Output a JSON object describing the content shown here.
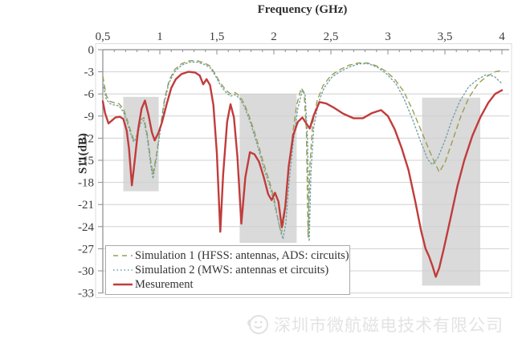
{
  "watermark": {
    "text": "深圳市微航磁电技术有限公司",
    "logo": "smiley-swirl-logo",
    "color": "#e3e3e3"
  },
  "colors": {
    "simulation1": "#9a9e50",
    "simulation2": "#74a2a6",
    "measurement": "#c13c3c",
    "grid": "#d0d0d0",
    "axis": "#8c8c8c",
    "band": "#dadada",
    "text": "#3c3c3c",
    "frame": "#dcdcdc"
  },
  "chart_data": {
    "type": "line",
    "title": "Frequency (GHz)",
    "xlabel": "Frequency (GHz)",
    "ylabel": "S11(dB)",
    "xlim": [
      0.5,
      4.0
    ],
    "ylim": [
      -33,
      0
    ],
    "x_tick_values": [
      0.5,
      1,
      1.5,
      2,
      2.5,
      3,
      3.5,
      4
    ],
    "x_tick_labels": [
      "0,5",
      "1",
      "1,5",
      "2",
      "2,5",
      "3",
      "3,5",
      "4"
    ],
    "x_minor_step": 0.1,
    "y_tick_values": [
      0,
      -3,
      -6,
      -9,
      -12,
      -15,
      -18,
      -21,
      -24,
      -27,
      -30,
      -33
    ],
    "y_tick_labels": [
      "0",
      "-3",
      "-6",
      "-9",
      "-12",
      "-15",
      "-18",
      "-21",
      "-24",
      "-27",
      "-30",
      "-33"
    ],
    "grid": "horizontal",
    "legend_position": "bottom-left",
    "highlight_bands": [
      {
        "x_range": [
          0.68,
          0.99
        ],
        "db_range": [
          -6.4,
          -19.2
        ]
      },
      {
        "x_range": [
          1.7,
          2.2
        ],
        "db_range": [
          -6.0,
          -26.2
        ]
      },
      {
        "x_range": [
          3.3,
          3.81
        ],
        "db_range": [
          -6.5,
          -32.0
        ]
      }
    ],
    "series": [
      {
        "name": "Simulation 1 (HFSS: antennas, ADS: circuits)",
        "style": "dashed",
        "color": "#9a9e50",
        "width": 1.4,
        "points": [
          [
            0.5,
            -3.6
          ],
          [
            0.53,
            -6.2
          ],
          [
            0.56,
            -7.0
          ],
          [
            0.6,
            -7.2
          ],
          [
            0.64,
            -7.3
          ],
          [
            0.68,
            -8.0
          ],
          [
            0.71,
            -9.3
          ],
          [
            0.74,
            -10.8
          ],
          [
            0.77,
            -12.2
          ],
          [
            0.8,
            -11.6
          ],
          [
            0.83,
            -9.6
          ],
          [
            0.86,
            -9.2
          ],
          [
            0.89,
            -11.5
          ],
          [
            0.92,
            -15.0
          ],
          [
            0.94,
            -16.9
          ],
          [
            0.97,
            -14.3
          ],
          [
            1.0,
            -11.0
          ],
          [
            1.04,
            -6.8
          ],
          [
            1.08,
            -4.2
          ],
          [
            1.13,
            -2.7
          ],
          [
            1.19,
            -1.9
          ],
          [
            1.26,
            -1.5
          ],
          [
            1.33,
            -1.5
          ],
          [
            1.39,
            -1.8
          ],
          [
            1.44,
            -2.2
          ],
          [
            1.49,
            -3.4
          ],
          [
            1.53,
            -4.5
          ],
          [
            1.58,
            -5.5
          ],
          [
            1.62,
            -6.0
          ],
          [
            1.66,
            -5.8
          ],
          [
            1.7,
            -6.3
          ],
          [
            1.74,
            -7.3
          ],
          [
            1.79,
            -9.3
          ],
          [
            1.83,
            -11.2
          ],
          [
            1.87,
            -13.2
          ],
          [
            1.91,
            -15.4
          ],
          [
            1.96,
            -17.8
          ],
          [
            2.0,
            -20.0
          ],
          [
            2.04,
            -23.3
          ],
          [
            2.065,
            -25.0
          ],
          [
            2.09,
            -23.0
          ],
          [
            2.12,
            -18.0
          ],
          [
            2.16,
            -12.0
          ],
          [
            2.2,
            -7.5
          ],
          [
            2.24,
            -5.2
          ],
          [
            2.265,
            -5.8
          ],
          [
            2.285,
            -11.0
          ],
          [
            2.3,
            -25.5
          ],
          [
            2.315,
            -16.0
          ],
          [
            2.34,
            -10.0
          ],
          [
            2.38,
            -6.9
          ],
          [
            2.43,
            -4.9
          ],
          [
            2.5,
            -3.5
          ],
          [
            2.58,
            -2.7
          ],
          [
            2.66,
            -2.1
          ],
          [
            2.74,
            -1.8
          ],
          [
            2.82,
            -1.8
          ],
          [
            2.9,
            -2.2
          ],
          [
            2.98,
            -2.9
          ],
          [
            3.06,
            -4.0
          ],
          [
            3.14,
            -5.7
          ],
          [
            3.22,
            -8.3
          ],
          [
            3.3,
            -11.3
          ],
          [
            3.38,
            -14.3
          ],
          [
            3.45,
            -16.6
          ],
          [
            3.5,
            -15.3
          ],
          [
            3.57,
            -12.2
          ],
          [
            3.64,
            -9.0
          ],
          [
            3.71,
            -6.5
          ],
          [
            3.79,
            -4.6
          ],
          [
            3.87,
            -3.6
          ],
          [
            3.94,
            -3.0
          ],
          [
            4.0,
            -2.8
          ]
        ]
      },
      {
        "name": "Simulation 2 (MWS: antennas et circuits)",
        "style": "dotted",
        "color": "#74a2a6",
        "width": 1.4,
        "points": [
          [
            0.5,
            -4.6
          ],
          [
            0.53,
            -6.7
          ],
          [
            0.56,
            -7.3
          ],
          [
            0.6,
            -7.5
          ],
          [
            0.64,
            -7.6
          ],
          [
            0.68,
            -8.4
          ],
          [
            0.71,
            -9.7
          ],
          [
            0.74,
            -11.2
          ],
          [
            0.77,
            -12.5
          ],
          [
            0.8,
            -11.9
          ],
          [
            0.83,
            -10.0
          ],
          [
            0.86,
            -9.6
          ],
          [
            0.89,
            -12.0
          ],
          [
            0.92,
            -15.6
          ],
          [
            0.94,
            -17.5
          ],
          [
            0.97,
            -14.8
          ],
          [
            1.0,
            -11.4
          ],
          [
            1.04,
            -7.2
          ],
          [
            1.08,
            -4.5
          ],
          [
            1.13,
            -3.0
          ],
          [
            1.19,
            -2.1
          ],
          [
            1.26,
            -1.7
          ],
          [
            1.33,
            -1.7
          ],
          [
            1.39,
            -2.0
          ],
          [
            1.44,
            -2.4
          ],
          [
            1.49,
            -3.6
          ],
          [
            1.53,
            -4.8
          ],
          [
            1.58,
            -5.8
          ],
          [
            1.62,
            -6.3
          ],
          [
            1.66,
            -6.1
          ],
          [
            1.7,
            -6.6
          ],
          [
            1.74,
            -7.7
          ],
          [
            1.79,
            -9.7
          ],
          [
            1.83,
            -11.7
          ],
          [
            1.87,
            -13.7
          ],
          [
            1.91,
            -16.0
          ],
          [
            1.96,
            -18.3
          ],
          [
            2.0,
            -20.6
          ],
          [
            2.05,
            -24.0
          ],
          [
            2.08,
            -25.7
          ],
          [
            2.105,
            -23.5
          ],
          [
            2.13,
            -18.5
          ],
          [
            2.17,
            -12.5
          ],
          [
            2.21,
            -8.0
          ],
          [
            2.25,
            -5.5
          ],
          [
            2.275,
            -6.2
          ],
          [
            2.295,
            -12.0
          ],
          [
            2.31,
            -26.0
          ],
          [
            2.325,
            -16.5
          ],
          [
            2.35,
            -10.5
          ],
          [
            2.39,
            -7.2
          ],
          [
            2.44,
            -5.2
          ],
          [
            2.51,
            -3.7
          ],
          [
            2.59,
            -2.9
          ],
          [
            2.67,
            -2.3
          ],
          [
            2.75,
            -1.9
          ],
          [
            2.83,
            -1.9
          ],
          [
            2.91,
            -2.4
          ],
          [
            2.99,
            -3.3
          ],
          [
            3.07,
            -4.6
          ],
          [
            3.14,
            -6.6
          ],
          [
            3.22,
            -9.6
          ],
          [
            3.29,
            -12.6
          ],
          [
            3.35,
            -14.9
          ],
          [
            3.39,
            -15.6
          ],
          [
            3.44,
            -14.6
          ],
          [
            3.5,
            -12.3
          ],
          [
            3.56,
            -9.6
          ],
          [
            3.63,
            -7.0
          ],
          [
            3.71,
            -5.0
          ],
          [
            3.79,
            -4.0
          ],
          [
            3.86,
            -3.4
          ],
          [
            3.93,
            -3.6
          ],
          [
            4.0,
            -4.6
          ]
        ]
      },
      {
        "name": "Mesurement",
        "style": "solid",
        "color": "#c13c3c",
        "width": 2.4,
        "points": [
          [
            0.5,
            -7.0
          ],
          [
            0.52,
            -8.6
          ],
          [
            0.55,
            -10.0
          ],
          [
            0.58,
            -9.6
          ],
          [
            0.61,
            -9.2
          ],
          [
            0.65,
            -9.1
          ],
          [
            0.68,
            -9.4
          ],
          [
            0.71,
            -11.0
          ],
          [
            0.73,
            -13.5
          ],
          [
            0.755,
            -18.4
          ],
          [
            0.78,
            -15.0
          ],
          [
            0.81,
            -10.8
          ],
          [
            0.84,
            -8.0
          ],
          [
            0.87,
            -6.9
          ],
          [
            0.9,
            -8.8
          ],
          [
            0.93,
            -11.2
          ],
          [
            0.955,
            -12.3
          ],
          [
            0.99,
            -11.2
          ],
          [
            1.02,
            -9.8
          ],
          [
            1.06,
            -7.4
          ],
          [
            1.1,
            -5.2
          ],
          [
            1.14,
            -4.0
          ],
          [
            1.19,
            -3.3
          ],
          [
            1.25,
            -3.0
          ],
          [
            1.31,
            -3.1
          ],
          [
            1.35,
            -3.5
          ],
          [
            1.38,
            -4.7
          ],
          [
            1.41,
            -4.0
          ],
          [
            1.44,
            -4.8
          ],
          [
            1.47,
            -7.5
          ],
          [
            1.5,
            -14.0
          ],
          [
            1.53,
            -24.7
          ],
          [
            1.555,
            -17.0
          ],
          [
            1.59,
            -9.8
          ],
          [
            1.62,
            -7.4
          ],
          [
            1.65,
            -9.2
          ],
          [
            1.68,
            -14.5
          ],
          [
            1.715,
            -23.6
          ],
          [
            1.75,
            -17.3
          ],
          [
            1.79,
            -13.9
          ],
          [
            1.83,
            -14.2
          ],
          [
            1.87,
            -15.2
          ],
          [
            1.91,
            -17.2
          ],
          [
            1.95,
            -19.6
          ],
          [
            1.98,
            -20.4
          ],
          [
            2.01,
            -19.4
          ],
          [
            2.04,
            -20.6
          ],
          [
            2.07,
            -24.1
          ],
          [
            2.1,
            -21.3
          ],
          [
            2.13,
            -15.8
          ],
          [
            2.17,
            -11.6
          ],
          [
            2.21,
            -9.8
          ],
          [
            2.25,
            -9.2
          ],
          [
            2.28,
            -9.9
          ],
          [
            2.315,
            -10.7
          ],
          [
            2.35,
            -8.9
          ],
          [
            2.4,
            -7.1
          ],
          [
            2.46,
            -7.3
          ],
          [
            2.53,
            -7.9
          ],
          [
            2.61,
            -8.7
          ],
          [
            2.7,
            -9.3
          ],
          [
            2.78,
            -9.3
          ],
          [
            2.86,
            -8.6
          ],
          [
            2.94,
            -8.2
          ],
          [
            3.0,
            -9.0
          ],
          [
            3.06,
            -10.8
          ],
          [
            3.12,
            -13.3
          ],
          [
            3.18,
            -16.3
          ],
          [
            3.24,
            -20.6
          ],
          [
            3.29,
            -24.5
          ],
          [
            3.33,
            -27.0
          ],
          [
            3.36,
            -28.0
          ],
          [
            3.39,
            -29.3
          ],
          [
            3.42,
            -30.8
          ],
          [
            3.45,
            -29.6
          ],
          [
            3.49,
            -27.0
          ],
          [
            3.55,
            -22.8
          ],
          [
            3.61,
            -18.5
          ],
          [
            3.67,
            -15.0
          ],
          [
            3.74,
            -11.7
          ],
          [
            3.81,
            -9.2
          ],
          [
            3.88,
            -7.2
          ],
          [
            3.94,
            -6.0
          ],
          [
            4.0,
            -5.5
          ]
        ]
      }
    ]
  }
}
